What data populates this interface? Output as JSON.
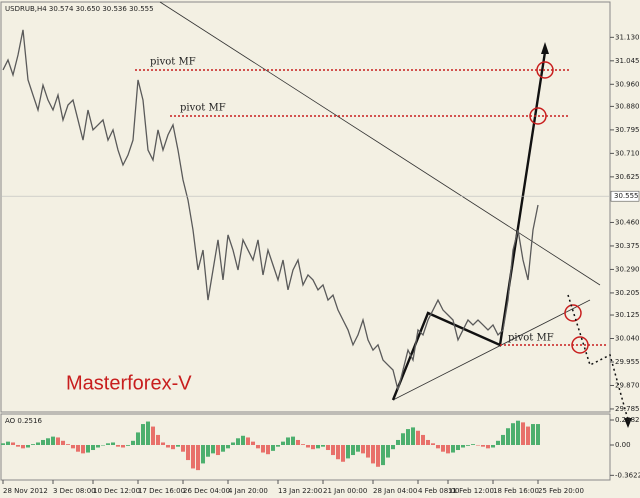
{
  "chart_data": [
    {
      "type": "line",
      "title": "USDRUB,H4 30.574 30.650 30.536 30.555",
      "watermark": "Masterforex-V",
      "annotations": [
        "pivot MF",
        "pivot MF",
        "pivot MF"
      ],
      "categories": [
        "28 Nov 2012",
        null,
        null,
        null,
        null,
        null,
        null,
        null,
        null,
        null,
        "3 Dec 08:00",
        null,
        null,
        null,
        null,
        null,
        null,
        null,
        "10 Dec 12:00",
        null,
        null,
        null,
        null,
        null,
        null,
        null,
        null,
        "17 Dec 16:00",
        null,
        null,
        null,
        null,
        null,
        null,
        null,
        null,
        "26 Dec 04:00",
        null,
        null,
        null,
        null,
        null,
        null,
        null,
        null,
        "4 Jan 20:00",
        null,
        null,
        null,
        null,
        null,
        null,
        null,
        null,
        null,
        "13 Jan 22:00",
        null,
        null,
        null,
        null,
        null,
        null,
        null,
        null,
        "21 Jan 00:00",
        null,
        null,
        null,
        null,
        null,
        null,
        null,
        null,
        null,
        "28 Jan 04:00",
        null,
        null,
        null,
        null,
        null,
        null,
        null,
        null,
        "4 Feb 08:00",
        null,
        null,
        null,
        null,
        null,
        "11 Feb 12:00",
        null,
        null,
        null,
        null,
        null,
        null,
        null,
        null,
        "18 Feb 16:00",
        null,
        null,
        null,
        null,
        null,
        null,
        null,
        null,
        "25 Feb 20:00"
      ],
      "series": [
        {
          "name": "USDRUB",
          "color": "#5a5a5a",
          "values": [
            31.012,
            31.048,
            30.994,
            31.066,
            31.157,
            30.976,
            30.921,
            30.867,
            30.957,
            30.903,
            30.867,
            30.921,
            30.831,
            30.885,
            30.903,
            30.831,
            30.758,
            30.867,
            30.795,
            30.813,
            30.831,
            30.758,
            30.795,
            30.722,
            30.668,
            30.704,
            30.758,
            30.976,
            30.903,
            30.722,
            30.686,
            30.795,
            30.722,
            30.777,
            30.813,
            30.722,
            30.614,
            30.541,
            30.433,
            30.288,
            30.36,
            30.179,
            30.288,
            30.397,
            30.252,
            30.415,
            30.36,
            30.288,
            30.397,
            30.36,
            30.324,
            30.397,
            30.27,
            30.36,
            30.306,
            30.252,
            30.324,
            30.216,
            30.288,
            30.324,
            30.234,
            30.27,
            30.252,
            30.216,
            30.234,
            30.179,
            30.197,
            30.143,
            30.107,
            30.071,
            30.017,
            30.053,
            30.107,
            30.035,
            29.998,
            30.017,
            29.962,
            29.944,
            29.926,
            29.854,
            29.926,
            29.998,
            29.962,
            30.071,
            30.053,
            30.107,
            30.143,
            30.179,
            30.143,
            30.125,
            30.107,
            30.035,
            30.071,
            30.107,
            30.089,
            30.107,
            30.089,
            30.071,
            30.089,
            30.053,
            30.071,
            30.179,
            30.36,
            30.433,
            30.324,
            30.252,
            30.433,
            30.523
          ]
        }
      ],
      "last_price": 30.555,
      "ylim": [
        29.774,
        31.247
      ],
      "yticks": [
        {
          "value": 31.13,
          "label": "31.130"
        },
        31.045,
        {
          "value": 30.96,
          "label": "30.960"
        },
        {
          "value": 30.88,
          "label": "30.880"
        },
        30.795,
        {
          "value": 30.71,
          "label": "30.710"
        },
        30.625,
        {
          "value": 30.46,
          "label": "30.460"
        },
        30.375,
        {
          "value": 30.29,
          "label": "30.290"
        },
        30.205,
        30.125,
        {
          "value": 30.04,
          "label": "30.040"
        },
        29.955,
        {
          "value": 29.87,
          "label": "29.870"
        },
        29.785
      ]
    },
    {
      "type": "bar",
      "title": "AO 0.2516",
      "up_color": "#4caf6e",
      "down_color": "#e8706a",
      "values": [
        0.02,
        0.04,
        0.03,
        -0.02,
        -0.04,
        -0.03,
        0.01,
        0.03,
        0.06,
        0.08,
        0.1,
        0.09,
        0.05,
        0.01,
        -0.04,
        -0.08,
        -0.1,
        -0.09,
        -0.06,
        -0.03,
        0.0,
        0.02,
        0.03,
        -0.02,
        -0.03,
        -0.01,
        0.05,
        0.15,
        0.25,
        0.28,
        0.22,
        0.12,
        0.03,
        -0.03,
        -0.05,
        -0.02,
        -0.08,
        -0.18,
        -0.28,
        -0.3,
        -0.22,
        -0.14,
        -0.1,
        -0.12,
        -0.08,
        -0.04,
        0.03,
        0.08,
        0.11,
        0.09,
        0.04,
        -0.04,
        -0.09,
        -0.11,
        -0.07,
        -0.02,
        0.04,
        0.09,
        0.1,
        0.06,
        0.01,
        -0.03,
        -0.05,
        -0.04,
        -0.02,
        -0.06,
        -0.12,
        -0.17,
        -0.2,
        -0.16,
        -0.12,
        -0.08,
        -0.1,
        -0.15,
        -0.22,
        -0.26,
        -0.24,
        -0.15,
        -0.05,
        0.06,
        0.14,
        0.19,
        0.21,
        0.17,
        0.12,
        0.06,
        0.02,
        -0.04,
        -0.08,
        -0.1,
        -0.09,
        -0.06,
        -0.03,
        -0.01,
        0.01,
        0.0,
        -0.02,
        -0.04,
        -0.03,
        0.05,
        0.12,
        0.2,
        0.26,
        0.29,
        0.27,
        0.22,
        0.25,
        0.25
      ],
      "ylim": [
        -0.394,
        0.358
      ],
      "yticks": [
        0.2982,
        {
          "value": 0,
          "label": "0.00"
        },
        -0.3622
      ]
    }
  ]
}
